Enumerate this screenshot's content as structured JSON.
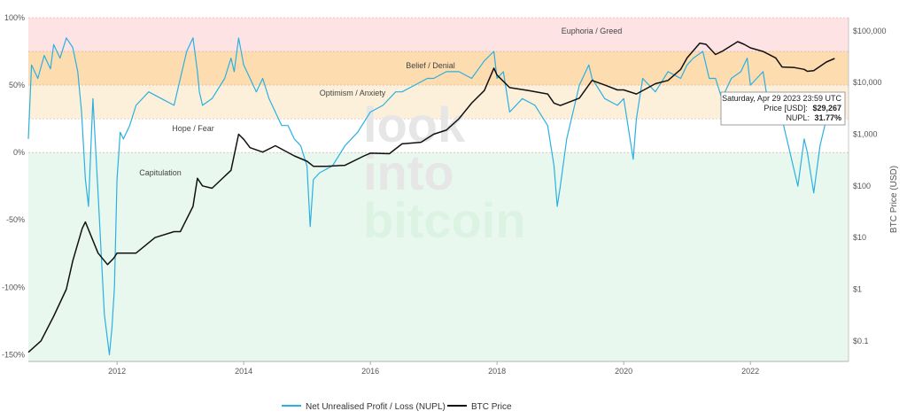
{
  "chart_data": {
    "type": "line",
    "title": "",
    "xlabel": "",
    "ylabel_left": "",
    "ylabel_right": "BTC Price (USD)",
    "x_ticks": [
      "2012",
      "2014",
      "2016",
      "2018",
      "2020",
      "2022"
    ],
    "x_range": [
      2010.6,
      2023.55
    ],
    "y_left": {
      "range": [
        -155,
        100
      ],
      "ticks": [
        100,
        50,
        0,
        -50,
        -100,
        -150
      ],
      "tick_labels": [
        "100%",
        "50%",
        "0%",
        "-50%",
        "-100%",
        "-150%"
      ]
    },
    "y_right": {
      "scale": "log",
      "range": [
        0.04,
        180000
      ],
      "ticks": [
        100000,
        10000,
        1000,
        100,
        10,
        1,
        0.1
      ],
      "tick_labels": [
        "$100,000",
        "$10,000",
        "$1,000",
        "$100",
        "$10",
        "$1",
        "$0.1"
      ]
    },
    "zones": [
      {
        "label": "Euphoria / Greed",
        "from": 75,
        "to": 100,
        "color": "#fde3e3"
      },
      {
        "label": "Belief / Denial",
        "from": 50,
        "to": 75,
        "color": "#fddcb0"
      },
      {
        "label": "Optimism / Anxiety",
        "from": 25,
        "to": 50,
        "color": "#fdf0da"
      },
      {
        "label": "Hope / Fear",
        "from": 0,
        "to": 25,
        "color": "#ffffff"
      },
      {
        "label": "Capitulation",
        "from": -155,
        "to": 0,
        "color": "#e9f8ee"
      }
    ],
    "series": [
      {
        "name": "Net Unrealised Profit / Loss (NUPL)",
        "color": "#2ab0e2",
        "axis": "left",
        "unit": "%",
        "x": [
          2010.6,
          2010.65,
          2010.75,
          2010.85,
          2010.95,
          2011.0,
          2011.1,
          2011.2,
          2011.3,
          2011.38,
          2011.44,
          2011.5,
          2011.55,
          2011.62,
          2011.7,
          2011.8,
          2011.88,
          2011.92,
          2011.96,
          2012.0,
          2012.05,
          2012.1,
          2012.2,
          2012.3,
          2012.5,
          2012.7,
          2012.9,
          2013.0,
          2013.1,
          2013.2,
          2013.27,
          2013.3,
          2013.35,
          2013.5,
          2013.7,
          2013.8,
          2013.85,
          2013.92,
          2014.0,
          2014.1,
          2014.2,
          2014.3,
          2014.4,
          2014.5,
          2014.6,
          2014.7,
          2014.8,
          2014.9,
          2015.0,
          2015.05,
          2015.1,
          2015.2,
          2015.4,
          2015.6,
          2015.8,
          2016.0,
          2016.2,
          2016.4,
          2016.5,
          2016.7,
          2016.9,
          2017.0,
          2017.2,
          2017.4,
          2017.6,
          2017.8,
          2017.95,
          2018.0,
          2018.1,
          2018.2,
          2018.4,
          2018.6,
          2018.8,
          2018.9,
          2018.95,
          2019.0,
          2019.1,
          2019.3,
          2019.45,
          2019.5,
          2019.7,
          2019.9,
          2020.0,
          2020.15,
          2020.2,
          2020.3,
          2020.5,
          2020.7,
          2020.9,
          2021.0,
          2021.1,
          2021.25,
          2021.35,
          2021.45,
          2021.55,
          2021.7,
          2021.85,
          2021.95,
          2022.0,
          2022.2,
          2022.3,
          2022.45,
          2022.6,
          2022.75,
          2022.85,
          2022.9,
          2023.0,
          2023.1,
          2023.2,
          2023.33
        ],
        "values": [
          10,
          65,
          55,
          72,
          62,
          80,
          70,
          85,
          78,
          60,
          30,
          -20,
          -40,
          40,
          -30,
          -120,
          -150,
          -130,
          -100,
          -20,
          15,
          10,
          20,
          35,
          45,
          40,
          35,
          55,
          75,
          85,
          60,
          45,
          35,
          40,
          55,
          70,
          60,
          85,
          65,
          55,
          45,
          55,
          40,
          30,
          20,
          20,
          10,
          5,
          -10,
          -55,
          -20,
          -15,
          -10,
          5,
          15,
          30,
          35,
          45,
          45,
          50,
          55,
          55,
          60,
          60,
          55,
          68,
          75,
          55,
          60,
          30,
          40,
          35,
          20,
          -10,
          -40,
          -25,
          10,
          50,
          65,
          55,
          40,
          35,
          40,
          -5,
          25,
          55,
          45,
          60,
          55,
          65,
          70,
          75,
          55,
          55,
          40,
          55,
          60,
          70,
          50,
          60,
          30,
          35,
          5,
          -25,
          10,
          0,
          -30,
          5,
          25,
          32
        ]
      },
      {
        "name": "BTC Price",
        "color": "#111111",
        "axis": "right",
        "unit": "USD",
        "x": [
          2010.6,
          2010.8,
          2011.0,
          2011.2,
          2011.3,
          2011.45,
          2011.5,
          2011.7,
          2011.85,
          2011.95,
          2012.0,
          2012.3,
          2012.6,
          2012.9,
          2013.0,
          2013.2,
          2013.27,
          2013.35,
          2013.5,
          2013.8,
          2013.92,
          2014.0,
          2014.1,
          2014.3,
          2014.5,
          2014.8,
          2015.0,
          2015.1,
          2015.3,
          2015.6,
          2015.9,
          2016.0,
          2016.3,
          2016.5,
          2016.8,
          2017.0,
          2017.2,
          2017.4,
          2017.6,
          2017.8,
          2017.95,
          2018.0,
          2018.2,
          2018.5,
          2018.8,
          2018.9,
          2019.0,
          2019.3,
          2019.5,
          2019.7,
          2019.9,
          2020.0,
          2020.2,
          2020.5,
          2020.7,
          2020.9,
          2021.0,
          2021.2,
          2021.3,
          2021.45,
          2021.55,
          2021.8,
          2021.9,
          2022.0,
          2022.2,
          2022.4,
          2022.5,
          2022.7,
          2022.85,
          2022.9,
          2023.0,
          2023.2,
          2023.33
        ],
        "values": [
          0.06,
          0.1,
          0.3,
          1,
          3.5,
          15,
          20,
          5,
          3,
          4,
          5,
          5,
          10,
          13,
          13,
          40,
          140,
          100,
          90,
          200,
          1000,
          800,
          550,
          450,
          600,
          380,
          300,
          240,
          240,
          250,
          380,
          430,
          420,
          650,
          700,
          1000,
          1200,
          2000,
          4000,
          7000,
          19000,
          14000,
          8000,
          7000,
          6000,
          4000,
          3600,
          5000,
          11000,
          9000,
          7200,
          7200,
          6000,
          9500,
          11000,
          18000,
          30000,
          58000,
          55000,
          35000,
          40000,
          62000,
          55000,
          47000,
          40000,
          30000,
          20000,
          19500,
          18000,
          16500,
          17000,
          25000,
          29267
        ]
      }
    ],
    "tooltip": {
      "date": "Saturday, Apr 29 2023 23:59 UTC",
      "price_label": "Price [USD]:",
      "price_value": "$29,267",
      "nupl_label": "NUPL:",
      "nupl_value": "31.77%"
    },
    "watermark": [
      "look",
      "into",
      "bitcoin"
    ],
    "legend_position": "bottom-center",
    "grid": false
  }
}
